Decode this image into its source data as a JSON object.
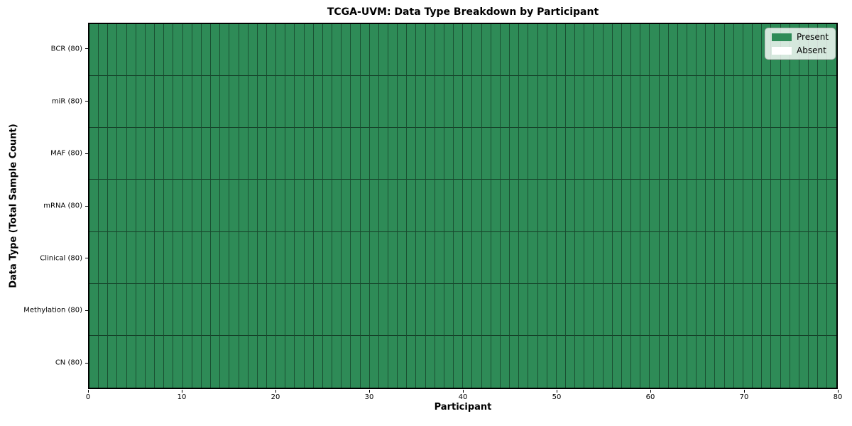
{
  "chart_data": {
    "type": "heatmap",
    "title": "TCGA-UVM: Data Type Breakdown by Participant",
    "xlabel": "Participant",
    "ylabel": "Data Type (Total Sample Count)",
    "rows": [
      "BCR (80)",
      "miR (80)",
      "MAF (80)",
      "mRNA (80)",
      "Clinical (80)",
      "Methylation (80)",
      "CN (80)"
    ],
    "n_participants": 80,
    "x_range": [
      0,
      80
    ],
    "x_ticks": [
      0,
      10,
      20,
      30,
      40,
      50,
      60,
      70,
      80
    ],
    "all_present": true,
    "present_count_per_row": [
      80,
      80,
      80,
      80,
      80,
      80,
      80
    ],
    "absent_count_per_row": [
      0,
      0,
      0,
      0,
      0,
      0,
      0
    ],
    "legend_position": "upper right",
    "grid": true,
    "legend": [
      {
        "label": "Present",
        "color": "#2e8b57"
      },
      {
        "label": "Absent",
        "color": "#ffffff"
      }
    ],
    "cell_present_color": "#2e8b57",
    "cell_absent_color": "#ffffff",
    "spine_color": "#000000"
  }
}
